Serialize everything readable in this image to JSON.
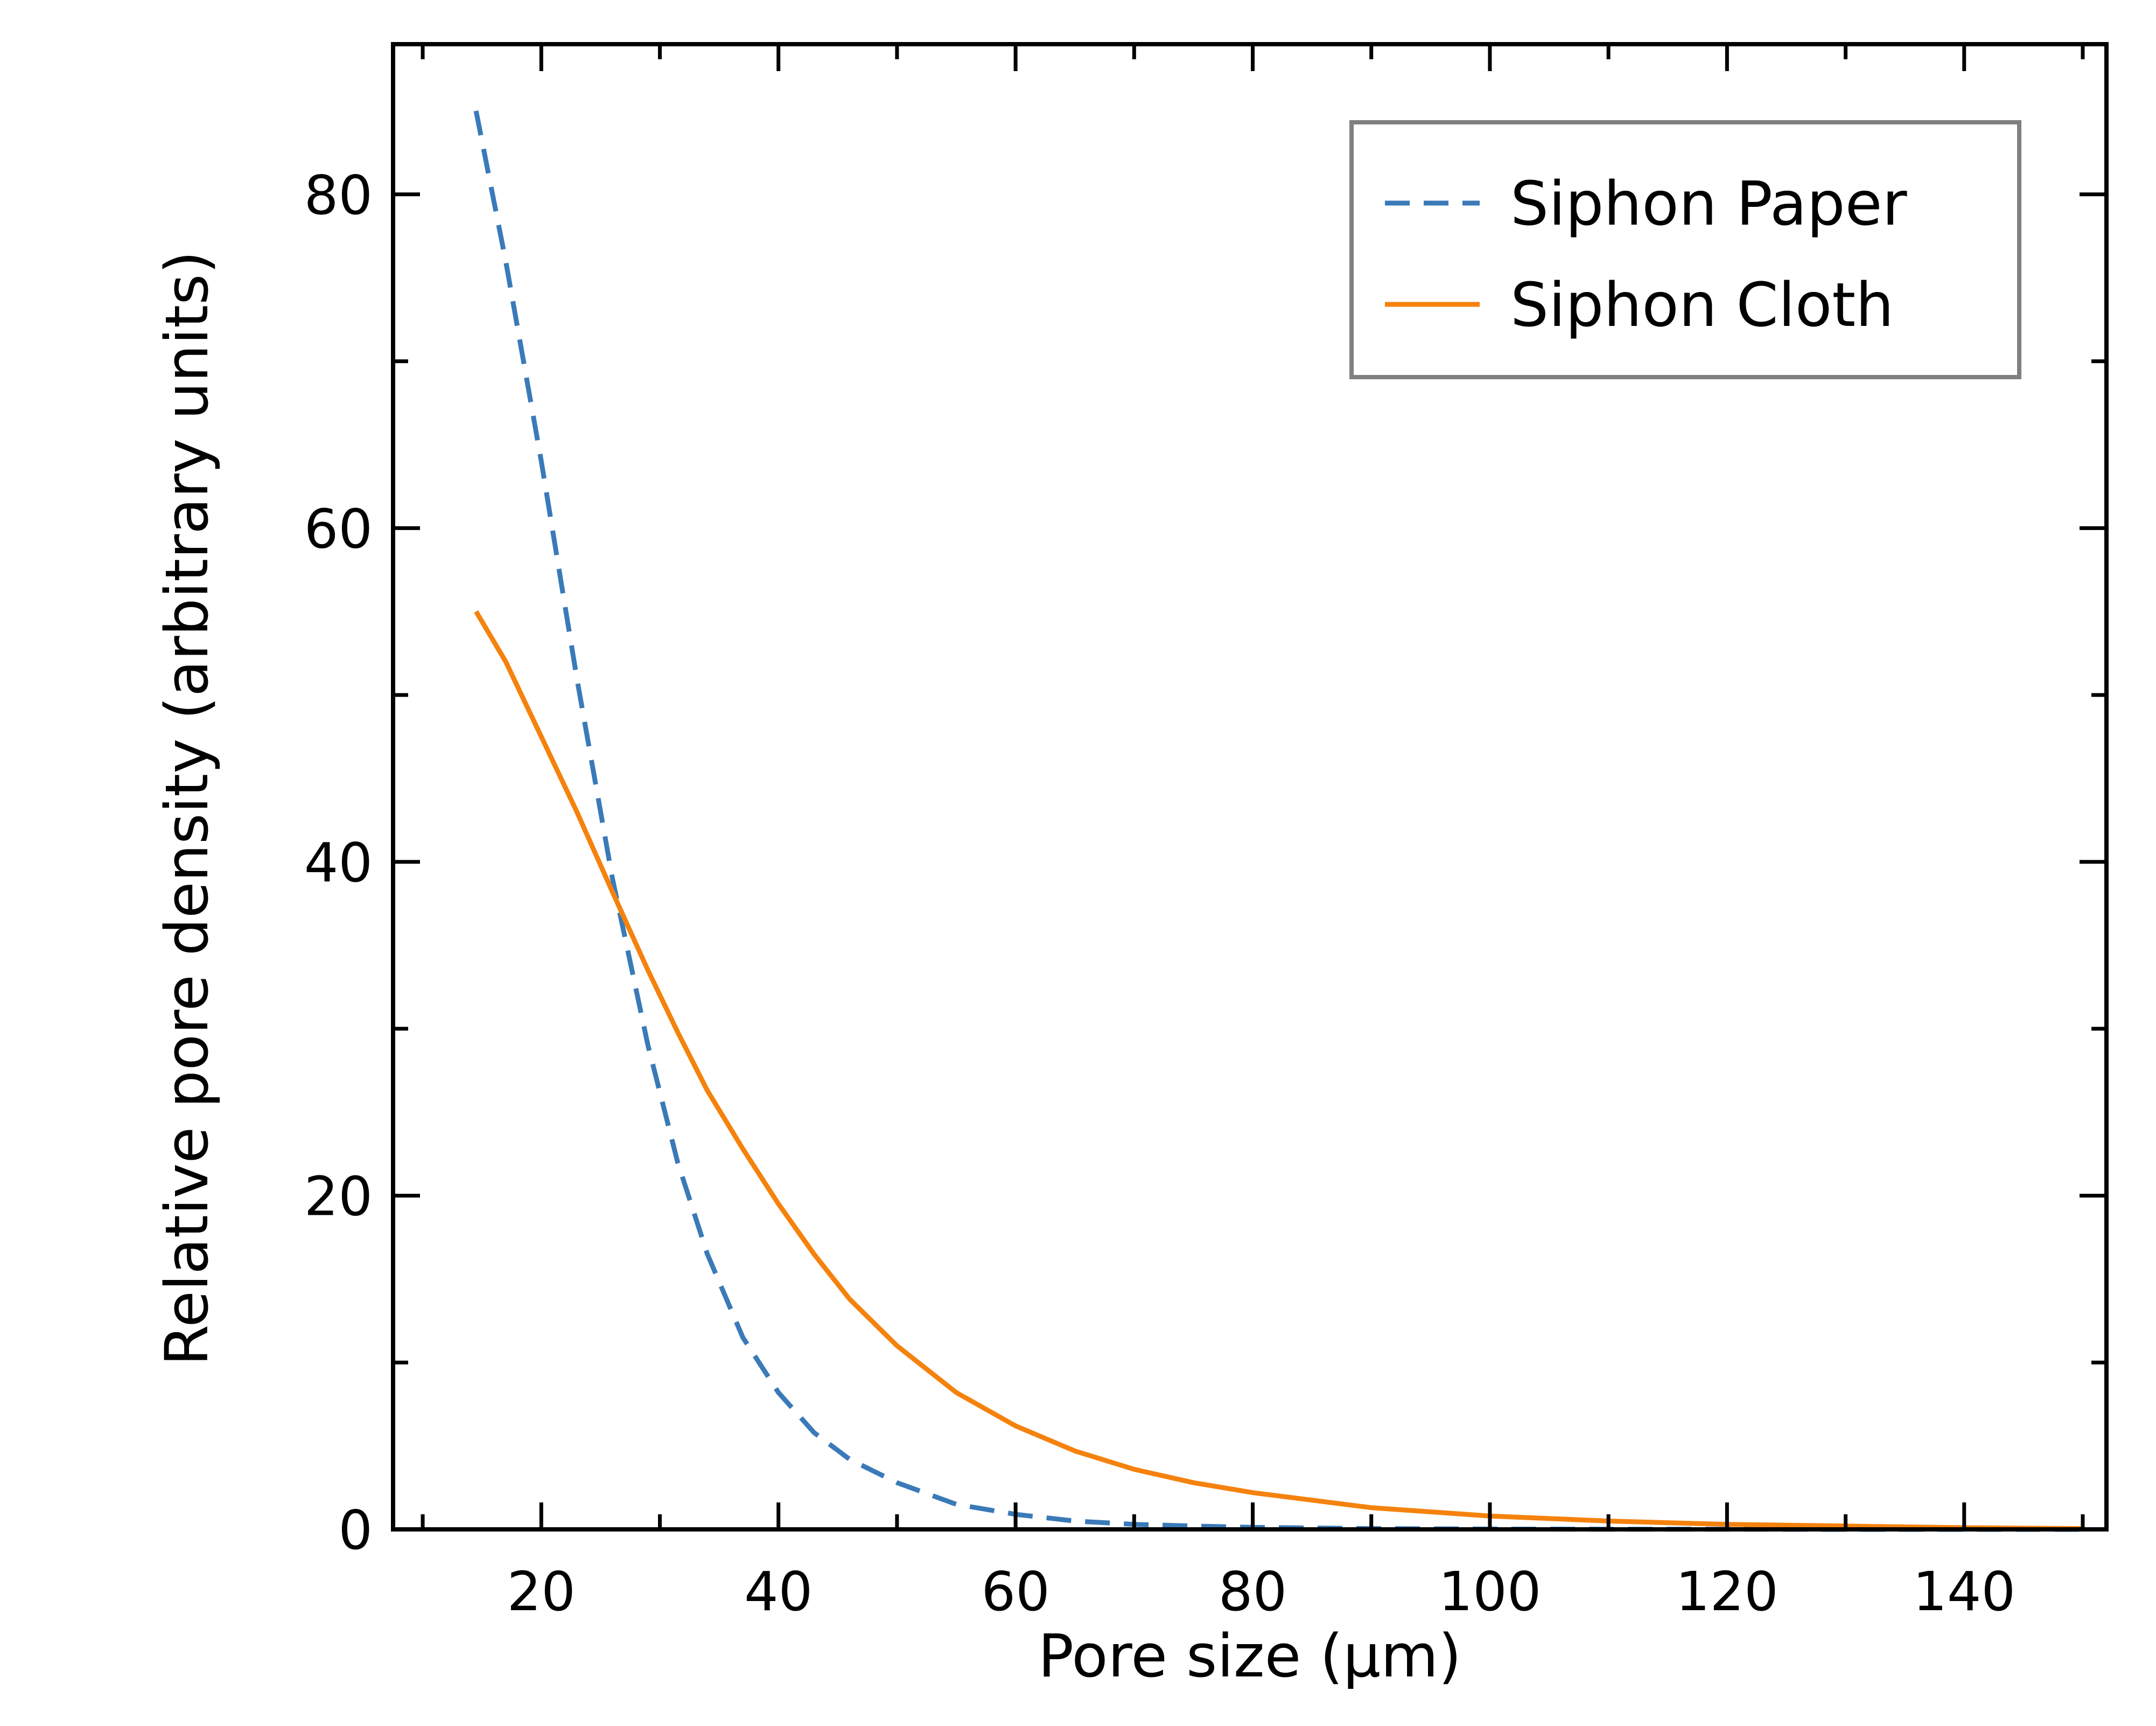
{
  "chart_data": {
    "type": "line",
    "xlabel": "Pore size (μm)",
    "ylabel": "Relative pore density (arbitrary units)",
    "xlim": [
      7.5,
      152
    ],
    "ylim": [
      0,
      89
    ],
    "x_major_ticks": [
      20,
      40,
      60,
      80,
      100,
      120,
      140
    ],
    "x_minor_ticks": [
      10,
      30,
      50,
      70,
      90,
      110,
      130,
      150
    ],
    "y_major_ticks": [
      0,
      20,
      40,
      60,
      80
    ],
    "y_minor_ticks": [
      10,
      30,
      50,
      70
    ],
    "grid": false,
    "legend_position": "top-right",
    "series": [
      {
        "name": "Siphon Paper",
        "color": "#3a7ab8",
        "style": "dashed",
        "x": [
          14.5,
          17,
          20,
          23,
          26,
          29,
          31.5,
          34,
          37,
          40,
          43,
          46,
          50,
          55,
          60,
          65,
          70,
          75,
          80,
          90,
          100,
          110,
          120,
          130,
          140,
          150
        ],
        "y": [
          85,
          76,
          64,
          51,
          39,
          29,
          22,
          16.5,
          11.5,
          8.2,
          5.8,
          4.2,
          2.8,
          1.5,
          0.9,
          0.5,
          0.3,
          0.2,
          0.12,
          0.05,
          0.02,
          0.01,
          0.01,
          0,
          0,
          0
        ]
      },
      {
        "name": "Siphon Cloth",
        "color": "#f5820d",
        "style": "solid",
        "x": [
          14.5,
          17,
          20,
          23,
          26,
          29,
          31.5,
          34,
          37,
          40,
          43,
          46,
          50,
          55,
          60,
          65,
          70,
          75,
          80,
          90,
          100,
          110,
          120,
          130,
          140,
          150
        ],
        "y": [
          55,
          52,
          47.5,
          43,
          38.2,
          33.5,
          29.8,
          26.3,
          22.8,
          19.5,
          16.5,
          13.8,
          11,
          8.2,
          6.2,
          4.7,
          3.6,
          2.8,
          2.2,
          1.3,
          0.8,
          0.5,
          0.3,
          0.2,
          0.1,
          0.05
        ]
      }
    ]
  }
}
